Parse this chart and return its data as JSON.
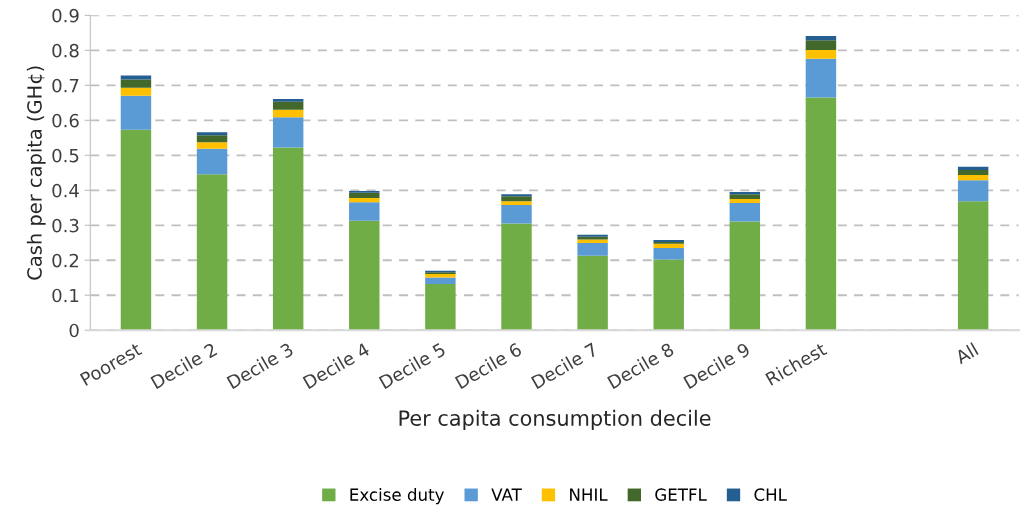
{
  "chart_data": {
    "type": "bar",
    "stacked": true,
    "xlabel": "Per capita consumption decile",
    "ylabel": "Cash per capita (GH¢)",
    "categories": [
      "Poorest",
      "Decile 2",
      "Decile 3",
      "Decile 4",
      "Decile 5",
      "Decile 6",
      "Decile 7",
      "Decile 8",
      "Decile 9",
      "Richest",
      null,
      "All"
    ],
    "series": [
      {
        "name": "Excise duty",
        "color": "#70ad47",
        "values": [
          0.573,
          0.446,
          0.522,
          0.313,
          0.132,
          0.305,
          0.213,
          0.202,
          0.311,
          0.665,
          null,
          0.369
        ]
      },
      {
        "name": "VAT",
        "color": "#5b9bd5",
        "values": [
          0.097,
          0.073,
          0.087,
          0.053,
          0.019,
          0.053,
          0.036,
          0.033,
          0.053,
          0.111,
          null,
          0.06
        ]
      },
      {
        "name": "NHIL",
        "color": "#ffc000",
        "values": [
          0.023,
          0.018,
          0.021,
          0.012,
          0.01,
          0.011,
          0.01,
          0.012,
          0.011,
          0.025,
          null,
          0.015
        ]
      },
      {
        "name": "GETFL",
        "color": "#43682b",
        "values": [
          0.024,
          0.02,
          0.023,
          0.015,
          0.005,
          0.014,
          0.008,
          0.005,
          0.014,
          0.028,
          null,
          0.014
        ]
      },
      {
        "name": "CHL",
        "color": "#255e91",
        "values": [
          0.011,
          0.009,
          0.008,
          0.005,
          0.004,
          0.006,
          0.006,
          0.006,
          0.006,
          0.012,
          null,
          0.009
        ]
      }
    ],
    "ylim": [
      0,
      0.9
    ],
    "yticks": [
      0,
      0.1,
      0.2,
      0.3,
      0.4,
      0.5,
      0.6,
      0.7,
      0.8,
      0.9
    ],
    "grid": "y",
    "legend": "bottom"
  }
}
